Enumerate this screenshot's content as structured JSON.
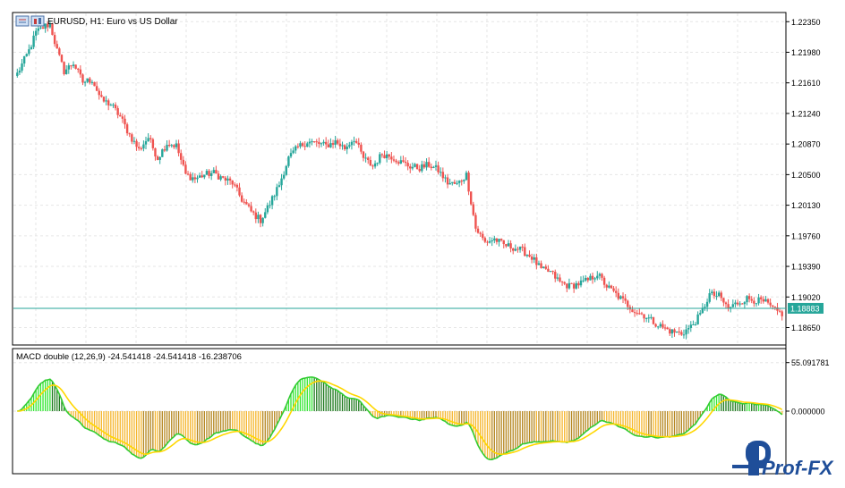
{
  "main_title": "EURUSD, H1:  Euro vs US Dollar",
  "indicator_title": "MACD double (12,26,9) -24.541418 -24.541418 -16.238706",
  "current_price_label": "1.18883",
  "watermark": "Prof-FX",
  "colors": {
    "bull": "#26a69a",
    "bear": "#ef5350",
    "price_line": "#26a69a",
    "grid": "#e6e6e6",
    "macd_pos_bright": "#33e633",
    "macd_pos_dark": "#1f7a1f",
    "macd_neg_bright": "#f5b62e",
    "macd_neg_dark": "#b5861e",
    "signal_line": "#ffd700",
    "macd_line_pos": "#33cc33",
    "macd_line_neg": "#f0a020"
  },
  "chart_data": [
    {
      "type": "candlestick",
      "title": "EURUSD, H1:  Euro vs US Dollar",
      "ylim": [
        1.1845,
        1.2245
      ],
      "y_ticks": [
        "1.22350",
        "1.21980",
        "1.21610",
        "1.21240",
        "1.20870",
        "1.20500",
        "1.20130",
        "1.19760",
        "1.19390",
        "1.19020",
        "1.18650"
      ],
      "current_price": 1.18883,
      "keypoints": [
        [
          0,
          1.2172
        ],
        [
          5,
          1.22
        ],
        [
          8,
          1.2222
        ],
        [
          12,
          1.223
        ],
        [
          14,
          1.2232
        ],
        [
          17,
          1.22
        ],
        [
          20,
          1.2175
        ],
        [
          24,
          1.2185
        ],
        [
          28,
          1.2162
        ],
        [
          32,
          1.2165
        ],
        [
          36,
          1.214
        ],
        [
          40,
          1.2135
        ],
        [
          44,
          1.212
        ],
        [
          48,
          1.2098
        ],
        [
          52,
          1.208
        ],
        [
          56,
          1.2095
        ],
        [
          60,
          1.207
        ],
        [
          64,
          1.2088
        ],
        [
          68,
          1.2085
        ],
        [
          72,
          1.205
        ],
        [
          76,
          1.2045
        ],
        [
          80,
          1.205
        ],
        [
          84,
          1.2052
        ],
        [
          88,
          1.2045
        ],
        [
          92,
          1.204
        ],
        [
          96,
          1.202
        ],
        [
          100,
          1.2005
        ],
        [
          104,
          1.1995
        ],
        [
          108,
          1.2015
        ],
        [
          112,
          1.2038
        ],
        [
          116,
          1.207
        ],
        [
          120,
          1.2083
        ],
        [
          124,
          1.209
        ],
        [
          128,
          1.2088
        ],
        [
          132,
          1.2085
        ],
        [
          136,
          1.209
        ],
        [
          140,
          1.2082
        ],
        [
          144,
          1.2094
        ],
        [
          148,
          1.207
        ],
        [
          152,
          1.206
        ],
        [
          156,
          1.2075
        ],
        [
          160,
          1.2072
        ],
        [
          164,
          1.2065
        ],
        [
          168,
          1.206
        ],
        [
          172,
          1.2058
        ],
        [
          176,
          1.2062
        ],
        [
          180,
          1.2055
        ],
        [
          184,
          1.204
        ],
        [
          188,
          1.2038
        ],
        [
          192,
          1.205
        ],
        [
          196,
          1.1985
        ],
        [
          200,
          1.1968
        ],
        [
          204,
          1.1972
        ],
        [
          208,
          1.1965
        ],
        [
          212,
          1.1962
        ],
        [
          216,
          1.1958
        ],
        [
          220,
          1.195
        ],
        [
          224,
          1.1935
        ],
        [
          228,
          1.1932
        ],
        [
          232,
          1.192
        ],
        [
          236,
          1.1915
        ],
        [
          240,
          1.1918
        ],
        [
          244,
          1.1922
        ],
        [
          248,
          1.193
        ],
        [
          252,
          1.1915
        ],
        [
          256,
          1.1905
        ],
        [
          260,
          1.1895
        ],
        [
          264,
          1.1885
        ],
        [
          268,
          1.188
        ],
        [
          272,
          1.1872
        ],
        [
          276,
          1.1865
        ],
        [
          280,
          1.186
        ],
        [
          284,
          1.1858
        ],
        [
          288,
          1.1866
        ],
        [
          292,
          1.188
        ],
        [
          296,
          1.1905
        ],
        [
          300,
          1.1903
        ],
        [
          304,
          1.1888
        ],
        [
          308,
          1.1895
        ],
        [
          312,
          1.19
        ],
        [
          316,
          1.1898
        ],
        [
          320,
          1.1895
        ],
        [
          324,
          1.1885
        ],
        [
          327,
          1.1882
        ]
      ]
    },
    {
      "type": "histogram",
      "title": "MACD double (12,26,9)",
      "series": [
        "MACD histogram",
        "MACD line",
        "Signal line"
      ],
      "y_ticks": [
        "55.091781",
        "0.000000"
      ],
      "ylim": [
        -70,
        70
      ],
      "values_last": {
        "histogram": -24.541418,
        "macd": -24.541418,
        "signal": -16.238706
      }
    }
  ]
}
